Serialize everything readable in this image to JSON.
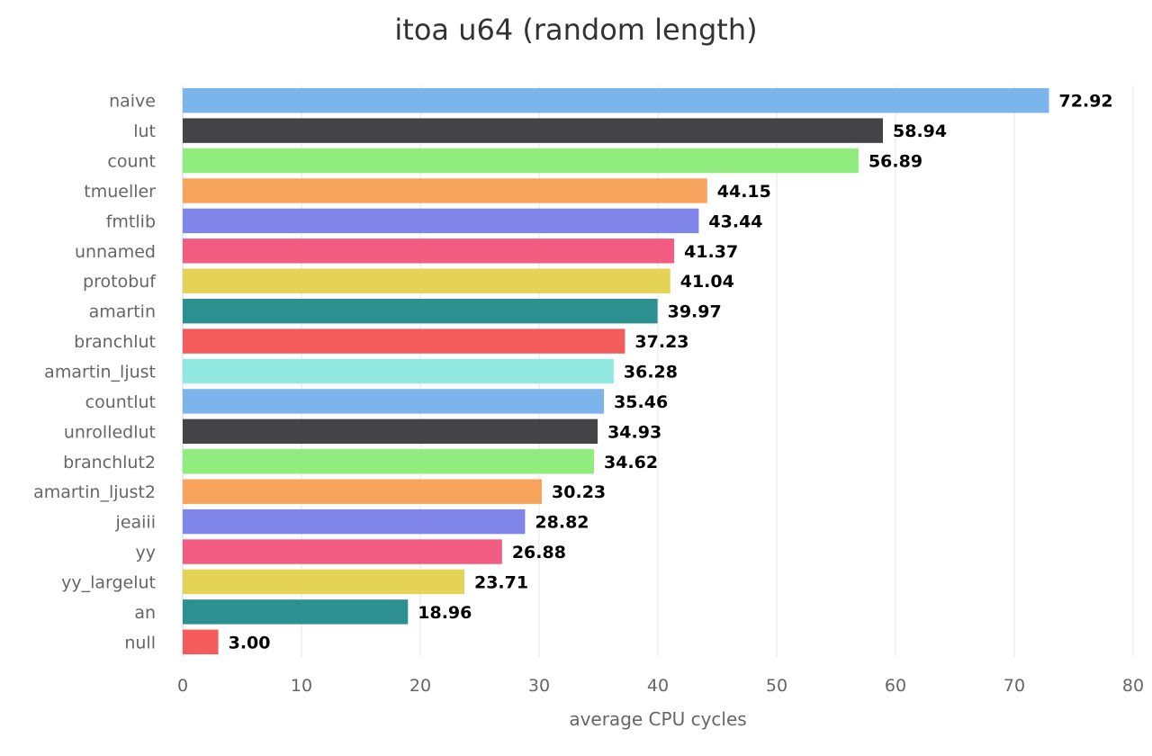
{
  "chart_data": {
    "type": "bar",
    "orientation": "horizontal",
    "title": "itoa u64 (random length)",
    "xlabel": "average CPU cycles",
    "ylabel": "",
    "xlim": [
      0,
      80
    ],
    "xticks": [
      0,
      10,
      20,
      30,
      40,
      50,
      60,
      70,
      80
    ],
    "grid": true,
    "categories": [
      "naive",
      "lut",
      "count",
      "tmueller",
      "fmtlib",
      "unnamed",
      "protobuf",
      "amartin",
      "branchlut",
      "amartin_ljust",
      "countlut",
      "unrolledlut",
      "branchlut2",
      "amartin_ljust2",
      "jeaiii",
      "yy",
      "yy_largelut",
      "an",
      "null"
    ],
    "values": [
      72.92,
      58.94,
      56.89,
      44.15,
      43.44,
      41.37,
      41.04,
      39.97,
      37.23,
      36.28,
      35.46,
      34.93,
      34.62,
      30.23,
      28.82,
      26.88,
      23.71,
      18.96,
      3.0
    ],
    "value_labels": [
      "72.92",
      "58.94",
      "56.89",
      "44.15",
      "43.44",
      "41.37",
      "41.04",
      "39.97",
      "37.23",
      "36.28",
      "35.46",
      "34.93",
      "34.62",
      "30.23",
      "28.82",
      "26.88",
      "23.71",
      "18.96",
      "3.00"
    ],
    "colors": [
      "#7cb5ec",
      "#434348",
      "#90ed7d",
      "#f7a35c",
      "#8085e9",
      "#f15c80",
      "#e4d354",
      "#2b908f",
      "#f45b5b",
      "#91e8e1",
      "#7cb5ec",
      "#434348",
      "#90ed7d",
      "#f7a35c",
      "#8085e9",
      "#f15c80",
      "#e4d354",
      "#2b908f",
      "#f45b5b"
    ]
  }
}
